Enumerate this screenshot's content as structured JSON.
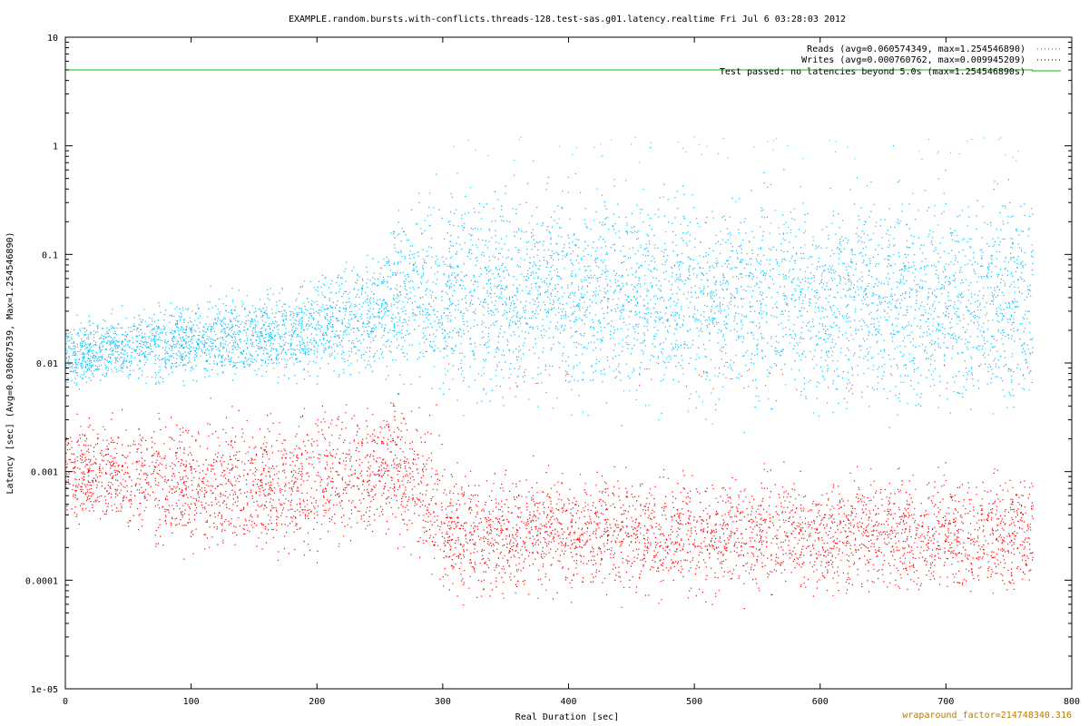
{
  "chart_data": {
    "type": "scatter",
    "title": "EXAMPLE.random.bursts.with-conflicts.threads-128.test-sas.g01.latency.realtime Fri Jul  6 03:28:03 2012",
    "xlabel": "Real Duration [sec]",
    "ylabel": "Latency [sec]  (Avg=0.030667539, Max=1.254546890)",
    "xlim": [
      0,
      800
    ],
    "ylim": [
      1e-05,
      10
    ],
    "y_scale": "log",
    "grid": false,
    "legend_position": "top-right",
    "x_ticks": [
      "0",
      "100",
      "200",
      "300",
      "400",
      "500",
      "600",
      "700",
      "800"
    ],
    "y_ticks": [
      "1e-05",
      "0.0001",
      "0.001",
      "0.01",
      "0.1",
      "1",
      "10"
    ],
    "series": [
      {
        "name": "Reads  (avg=0.060574349, max=1.254546890)",
        "color": "#00bfff",
        "x_range": [
          0,
          769
        ],
        "bands": [
          {
            "x": 0,
            "low": 0.005,
            "high": 0.03
          },
          {
            "x": 100,
            "low": 0.005,
            "high": 0.05
          },
          {
            "x": 200,
            "low": 0.005,
            "high": 0.08
          },
          {
            "x": 250,
            "low": 0.005,
            "high": 0.2
          },
          {
            "x": 280,
            "low": 0.004,
            "high": 0.6
          },
          {
            "x": 300,
            "low": 0.0025,
            "high": 0.8
          },
          {
            "x": 769,
            "low": 0.0015,
            "high": 0.9
          }
        ],
        "max": 1.25454689
      },
      {
        "name": "Writes  (avg=0.000760762, max=0.009945209)",
        "color": "#ff0000",
        "x_range": [
          0,
          769
        ],
        "bands": [
          {
            "x": 0,
            "low": 0.0003,
            "high": 0.004
          },
          {
            "x": 100,
            "low": 0.0001,
            "high": 0.005
          },
          {
            "x": 200,
            "low": 0.0001,
            "high": 0.006
          },
          {
            "x": 260,
            "low": 0.0002,
            "high": 0.007
          },
          {
            "x": 300,
            "low": 5e-05,
            "high": 0.005
          },
          {
            "x": 305,
            "low": 5e-05,
            "high": 0.0015
          },
          {
            "x": 769,
            "low": 5e-05,
            "high": 0.0015
          }
        ],
        "max": 0.009945209
      },
      {
        "name": "Test passed: no latencies beyond 5.0s (max=1.254546890s)",
        "color": "#00c000",
        "type": "line",
        "x": [
          0,
          769
        ],
        "values": [
          5.0,
          5.0
        ]
      }
    ]
  },
  "footer": {
    "wraparound": "wraparound_factor=214748340.316",
    "color": "#b87a00"
  }
}
